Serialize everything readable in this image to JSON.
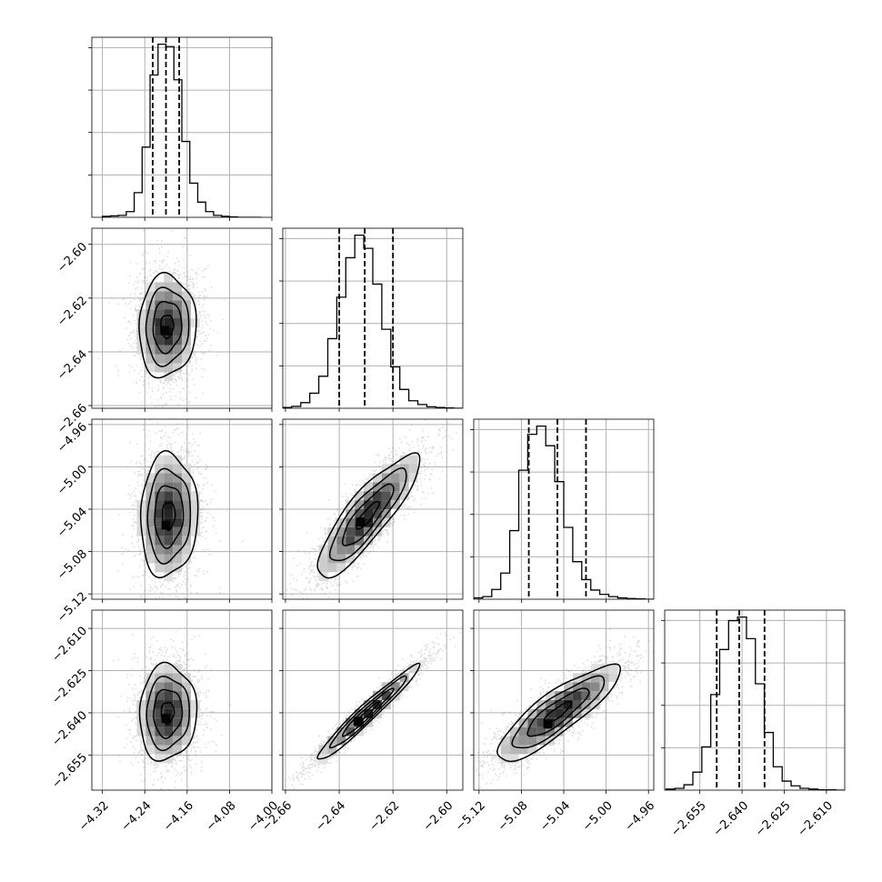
{
  "chart_data": {
    "type": "corner",
    "grid": true,
    "colors": {
      "ink": "#000000",
      "grid": "#b0b0b0",
      "scatter": "#8c8c8c"
    },
    "parameters": [
      {
        "index": 0,
        "range": [
          -4.34,
          -4.0
        ],
        "median": -4.2,
        "q16": -4.225,
        "q84": -4.175,
        "ticks": [
          -4.32,
          -4.24,
          -4.16,
          -4.08,
          -4.0
        ],
        "tick_labels": [
          "−4.32",
          "−4.24",
          "−4.16",
          "−4.08",
          "−4.00"
        ]
      },
      {
        "index": 1,
        "range": [
          -2.661,
          -2.594
        ],
        "median": -2.6305,
        "q16": -2.64,
        "q84": -2.62,
        "ticks": [
          -2.66,
          -2.64,
          -2.62,
          -2.6
        ],
        "tick_labels": [
          "−2.66",
          "−2.64",
          "−2.62",
          "−2.60"
        ]
      },
      {
        "index": 2,
        "range": [
          -5.125,
          -4.955
        ],
        "median": -5.046,
        "q16": -5.073,
        "q84": -5.019,
        "ticks": [
          -5.12,
          -5.08,
          -5.04,
          -5.0,
          -4.96
        ],
        "tick_labels": [
          "−5.12",
          "−5.08",
          "−5.04",
          "−5.00",
          "−4.96"
        ]
      },
      {
        "index": 3,
        "range": [
          -2.6675,
          -2.6035
        ],
        "median": -2.641,
        "q16": -2.649,
        "q84": -2.632,
        "ticks": [
          -2.655,
          -2.64,
          -2.625,
          -2.61
        ],
        "tick_labels": [
          "−2.655",
          "−2.640",
          "−2.625",
          "−2.610"
        ]
      }
    ],
    "histograms": [
      {
        "param": 0,
        "start": -4.32,
        "end": -4.02,
        "counts": [
          2,
          3,
          4,
          12,
          52,
          148,
          300,
          365,
          360,
          290,
          160,
          72,
          32,
          12,
          4,
          2,
          1,
          0,
          0,
          0
        ]
      },
      {
        "param": 1,
        "start": -2.661,
        "end": -2.594,
        "counts": [
          2,
          5,
          15,
          40,
          85,
          185,
          295,
          400,
          460,
          425,
          330,
          210,
          110,
          50,
          20,
          10,
          4,
          2,
          1,
          0
        ]
      },
      {
        "param": 2,
        "start": -5.125,
        "end": -4.955,
        "counts": [
          4,
          8,
          30,
          80,
          210,
          395,
          505,
          530,
          470,
          360,
          220,
          115,
          60,
          28,
          15,
          8,
          4,
          2,
          1,
          0
        ]
      },
      {
        "param": 3,
        "start": -2.667,
        "end": -2.6035,
        "counts": [
          3,
          5,
          15,
          50,
          120,
          265,
          390,
          470,
          480,
          420,
          295,
          160,
          65,
          25,
          12,
          5,
          3,
          1,
          1,
          0
        ]
      }
    ],
    "pairs": [
      {
        "x": 0,
        "y": 1,
        "mean": [
          -4.198,
          -2.6305
        ],
        "sigma": [
          0.027,
          0.0095
        ],
        "correlation": 0.05,
        "mode": [
          -4.202,
          -2.632
        ]
      },
      {
        "x": 0,
        "y": 2,
        "mean": [
          -4.195,
          -5.046
        ],
        "sigma": [
          0.027,
          0.029
        ],
        "correlation": 0.05,
        "mode": [
          -4.2,
          -5.055
        ]
      },
      {
        "x": 1,
        "y": 2,
        "mean": [
          -2.6295,
          -5.046
        ],
        "sigma": [
          0.0095,
          0.029
        ],
        "correlation": 0.86,
        "mode": [
          -2.632,
          -5.052
        ]
      },
      {
        "x": 0,
        "y": 3,
        "mean": [
          -4.197,
          -2.64
        ],
        "sigma": [
          0.027,
          0.0085
        ],
        "correlation": 0.05,
        "mode": [
          -4.2,
          -2.642
        ]
      },
      {
        "x": 1,
        "y": 3,
        "mean": [
          -2.6295,
          -2.64
        ],
        "sigma": [
          0.0095,
          0.0085
        ],
        "correlation": 0.97,
        "mode": [
          -2.633,
          -2.643
        ]
      },
      {
        "x": 2,
        "y": 3,
        "mean": [
          -5.046,
          -2.64
        ],
        "sigma": [
          0.029,
          0.0085
        ],
        "correlation": 0.86,
        "mode": [
          -5.055,
          -2.644
        ]
      }
    ],
    "contour_levels_sigma": [
      0.5,
      1.0,
      1.5,
      2.0
    ]
  }
}
